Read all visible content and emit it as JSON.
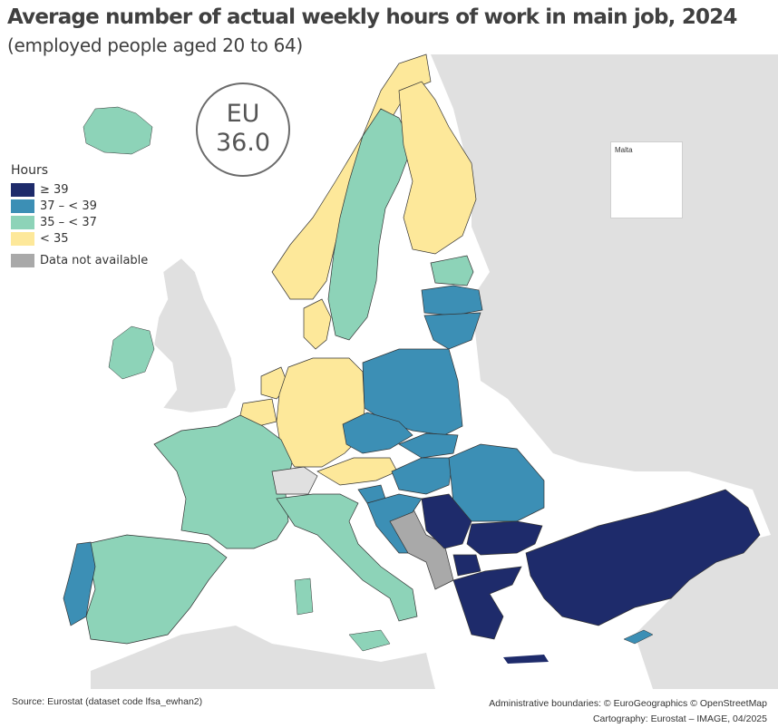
{
  "title": "Average number of actual weekly hours of work in main job, 2024",
  "subtitle": "(employed people aged 20 to 64)",
  "eu_badge": {
    "label": "EU",
    "value": "36.0"
  },
  "legend": {
    "title": "Hours",
    "items": [
      {
        "label": "≥ 39",
        "color": "#1e2b6b"
      },
      {
        "label": "37 – < 39",
        "color": "#3c8fb5"
      },
      {
        "label": "35 – < 37",
        "color": "#8dd3b8"
      },
      {
        "label": "< 35",
        "color": "#fde89a"
      },
      {
        "label": "Data not available",
        "color": "#a9a9a9"
      }
    ]
  },
  "inset": {
    "label": "Malta"
  },
  "colors": {
    "sea": "#ffffff",
    "non_eu_land": "#e0e0e0",
    "border": "#333333"
  },
  "footer": {
    "source": "Source: Eurostat (dataset code lfsa_ewhan2)",
    "boundaries": "Administrative boundaries: © EuroGeographics © OpenStreetMap",
    "cartography": "Cartography: Eurostat – IMAGE, 04/2025"
  }
}
